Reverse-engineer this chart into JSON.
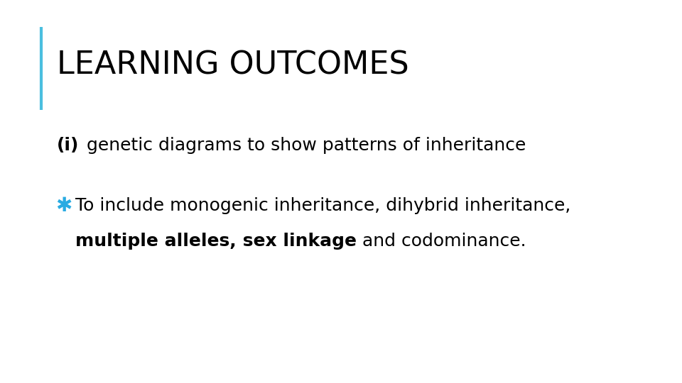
{
  "title": "LEARNING OUTCOMES",
  "title_color": "#000000",
  "title_fontsize": 32,
  "title_fontweight": "normal",
  "accent_bar_color": "#4BBFDF",
  "background_color": "#ffffff",
  "item_i_bold": "(i)",
  "item_i_rest": " genetic diagrams to show patterns of inheritance",
  "item_fontsize": 18,
  "bullet_color": "#29ABE2",
  "bullet_symbol": "✱",
  "bullet_fontsize": 20,
  "line1_text": "To include monogenic inheritance, dihybrid inheritance,",
  "line2_part1": "multiple alleles,",
  "line2_part2": " sex linkage",
  "line2_part3": " and codominance.",
  "body_fontsize": 18
}
